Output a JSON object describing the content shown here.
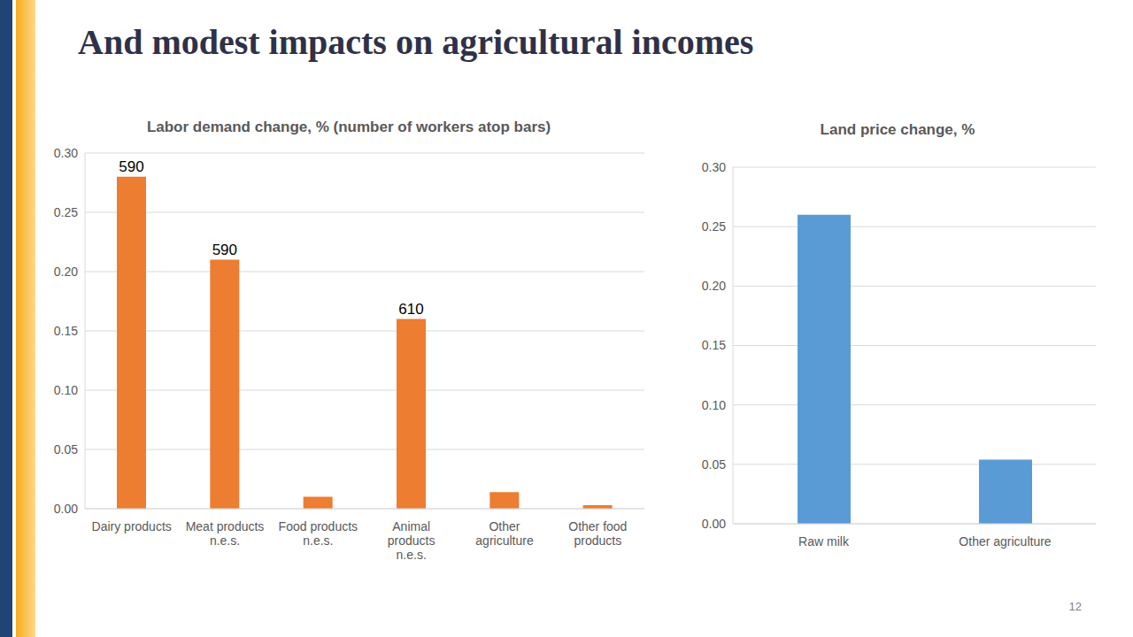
{
  "title": "And modest impacts on agricultural incomes",
  "page_number": "12",
  "chart_data": [
    {
      "type": "bar",
      "title": "Labor demand change, % (number of workers atop bars)",
      "categories": [
        "Dairy products",
        "Meat products n.e.s.",
        "Food products n.e.s.",
        "Animal products n.e.s.",
        "Other agriculture",
        "Other food products"
      ],
      "values": [
        0.28,
        0.21,
        0.01,
        0.16,
        0.014,
        0.003
      ],
      "workers": [
        590,
        590,
        null,
        610,
        null,
        null
      ],
      "color": "#ed7d31",
      "ylim": [
        0,
        0.3
      ],
      "yticks": [
        {
          "value": 0,
          "label": "0.00"
        },
        {
          "value": 0.05,
          "label": "0.05"
        },
        {
          "value": 0.1,
          "label": "0.10"
        },
        {
          "value": 0.15,
          "label": "0.15"
        },
        {
          "value": 0.2,
          "label": "0.20"
        },
        {
          "value": 0.25,
          "label": "0.25"
        },
        {
          "value": 0.3,
          "label": "0.30"
        }
      ],
      "grid": true
    },
    {
      "type": "bar",
      "title": "Land price change, %",
      "categories": [
        "Raw milk",
        "Other agriculture"
      ],
      "values": [
        0.26,
        0.054
      ],
      "color": "#5b9bd5",
      "ylim": [
        0,
        0.3
      ],
      "yticks": [
        {
          "value": 0,
          "label": "0.00"
        },
        {
          "value": 0.05,
          "label": "0.05"
        },
        {
          "value": 0.1,
          "label": "0.10"
        },
        {
          "value": 0.15,
          "label": "0.15"
        },
        {
          "value": 0.2,
          "label": "0.20"
        },
        {
          "value": 0.25,
          "label": "0.25"
        },
        {
          "value": 0.3,
          "label": "0.30"
        }
      ],
      "grid": true
    }
  ]
}
